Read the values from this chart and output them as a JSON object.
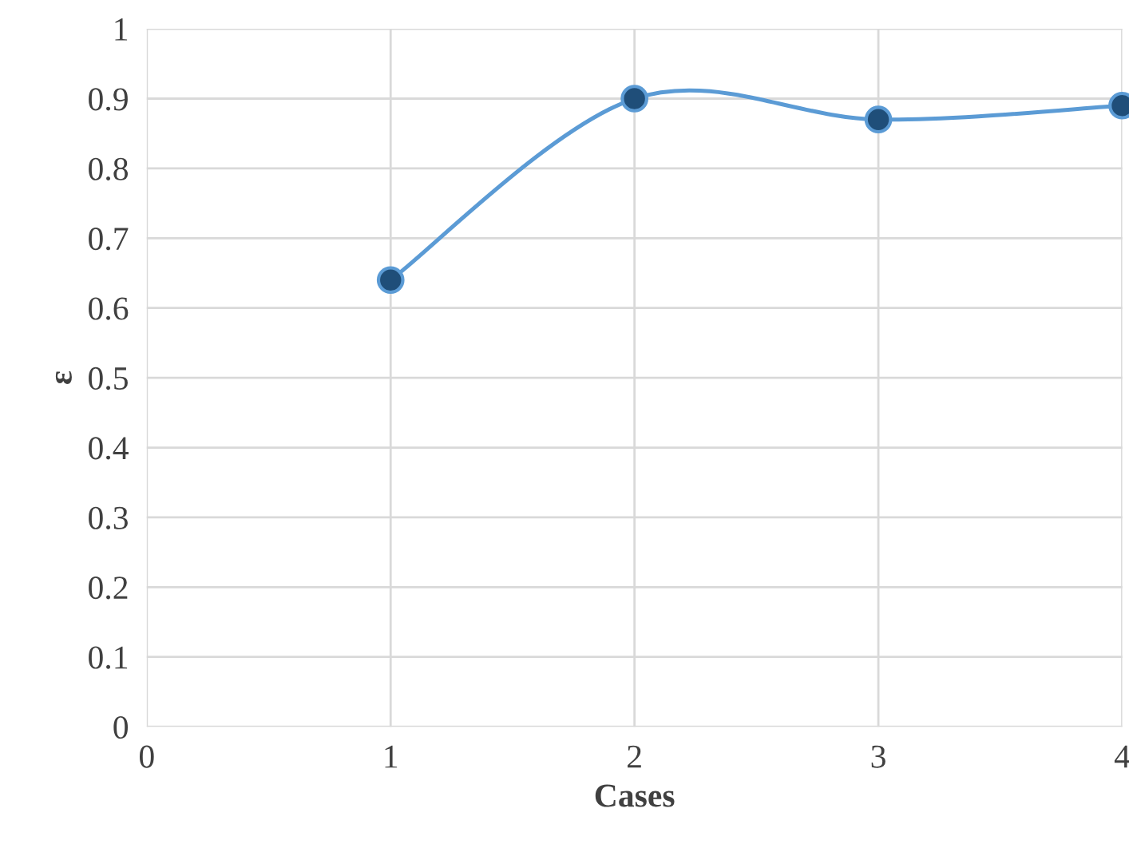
{
  "chart_data": {
    "type": "line",
    "xlabel": "Cases",
    "ylabel": "ε",
    "x": [
      1,
      2,
      3,
      4
    ],
    "series": [
      {
        "color": "#5b9bd5",
        "values": [
          0.64,
          0.9,
          0.87,
          0.89
        ]
      }
    ],
    "xlim": [
      0,
      4
    ],
    "xticks": [
      0,
      1,
      2,
      3,
      4
    ],
    "ylim": [
      0,
      1
    ],
    "yticks": [
      0,
      0.1,
      0.2,
      0.3,
      0.4,
      0.5,
      0.6,
      0.7,
      0.8,
      0.9,
      1
    ],
    "grid": true,
    "marker": "circle",
    "line_style": "solid"
  }
}
